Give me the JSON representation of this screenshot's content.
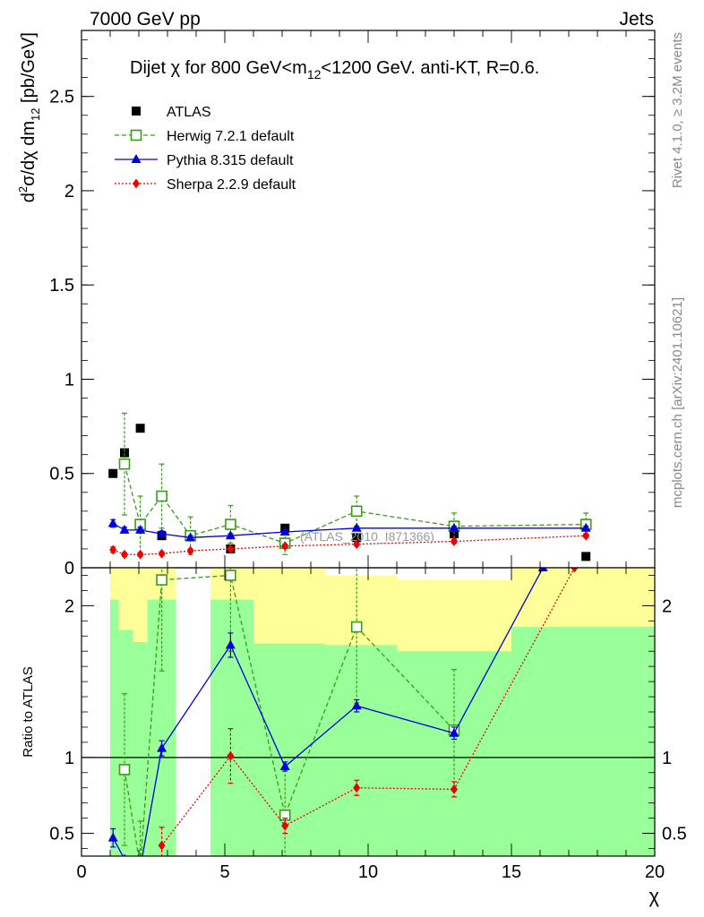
{
  "header": {
    "left": "7000 GeV pp",
    "right": "Jets"
  },
  "side_labels": {
    "rivet": "Rivet 4.1.0, ≥ 3.2M events",
    "mcplots": "mcplots.cern.ch [arXiv:2401.10621]"
  },
  "colors": {
    "atlas": "#000000",
    "herwig": "#3a9a1a",
    "pythia": "#0000dd",
    "sherpa": "#ee0000",
    "band_yellow": "#ffff99",
    "band_green": "#99ff99"
  },
  "chart_data": [
    {
      "type": "scatter",
      "panel": "main",
      "title_parts": {
        "pre": "Dijet χ for 800 GeV<m",
        "sub": "12",
        "post": "<1200 GeV.  anti-KT, R=0.6."
      },
      "ylabel_parts": {
        "pre": "d",
        "sup": "2",
        "mid": "σ/dχ dm",
        "sub": "12",
        "post": " [pb/GeV]"
      },
      "xlim": [
        0,
        20
      ],
      "ylim": [
        0,
        2.85
      ],
      "y_ticks": [
        0,
        0.5,
        1,
        1.5,
        2,
        2.5
      ],
      "y_tick_labels": [
        "0",
        "0.5",
        "1",
        "1.5",
        "2",
        "2.5"
      ],
      "watermark": "(ATLAS_2010_I871366)",
      "legend_position": "top-left",
      "series": [
        {
          "name": "ATLAS",
          "key": "atlas",
          "marker": "square-filled",
          "x": [
            1.1,
            1.5,
            2.05,
            2.8,
            5.2,
            7.1,
            9.6,
            13.0,
            17.6
          ],
          "y": [
            0.5,
            0.61,
            0.74,
            0.17,
            0.1,
            0.21,
            0.16,
            0.18,
            0.06
          ]
        },
        {
          "name": "Herwig 7.2.1 default",
          "key": "herwig",
          "marker": "square-open",
          "line": "dashed",
          "x": [
            1.5,
            2.05,
            2.8,
            3.8,
            5.2,
            7.1,
            9.6,
            13.0,
            17.6
          ],
          "y": [
            0.55,
            0.23,
            0.38,
            0.17,
            0.23,
            0.13,
            0.3,
            0.22,
            0.23
          ],
          "err": [
            0.27,
            0.15,
            0.17,
            0.1,
            0.1,
            0.06,
            0.08,
            0.07,
            0.06
          ]
        },
        {
          "name": "Pythia 8.315 default",
          "key": "pythia",
          "marker": "triangle",
          "line": "solid",
          "x": [
            1.1,
            1.5,
            2.05,
            2.8,
            3.8,
            5.2,
            7.1,
            9.6,
            13.0,
            17.6
          ],
          "y": [
            0.235,
            0.2,
            0.2,
            0.18,
            0.16,
            0.17,
            0.19,
            0.21,
            0.21,
            0.21
          ],
          "err": [
            0.02,
            0.015,
            0.015,
            0.015,
            0.01,
            0.01,
            0.01,
            0.01,
            0.01,
            0.01
          ]
        },
        {
          "name": "Sherpa 2.2.9 default",
          "key": "sherpa",
          "marker": "diamond",
          "line": "dotted",
          "x": [
            1.1,
            1.5,
            2.05,
            2.8,
            3.8,
            5.2,
            7.1,
            9.6,
            13.0,
            17.6
          ],
          "y": [
            0.095,
            0.07,
            0.07,
            0.075,
            0.09,
            0.1,
            0.115,
            0.125,
            0.14,
            0.17
          ],
          "err": [
            0.015,
            0.01,
            0.01,
            0.01,
            0.01,
            0.01,
            0.01,
            0.01,
            0.01,
            0.01
          ]
        }
      ]
    },
    {
      "type": "scatter",
      "panel": "ratio",
      "ylabel": "Ratio to ATLAS",
      "xlabel": "χ",
      "xlim": [
        0,
        20
      ],
      "ylim": [
        0.35,
        2.25
      ],
      "x_ticks": [
        0,
        5,
        10,
        15,
        20
      ],
      "x_tick_labels": [
        "0",
        "5",
        "10",
        "15",
        "20"
      ],
      "y_ticks": [
        0.5,
        1,
        2
      ],
      "y_tick_labels": [
        "0.5",
        "1",
        "2"
      ],
      "reference_line": 1,
      "bands": [
        {
          "x0": 1.0,
          "x1": 1.3,
          "green": [
            0.35,
            2.04
          ],
          "yellow": [
            0.35,
            2.25
          ]
        },
        {
          "x0": 1.3,
          "x1": 1.8,
          "green": [
            0.35,
            1.84
          ],
          "yellow": [
            0.35,
            2.25
          ]
        },
        {
          "x0": 1.8,
          "x1": 2.3,
          "green": [
            0.35,
            1.76
          ],
          "yellow": [
            0.35,
            2.25
          ]
        },
        {
          "x0": 2.3,
          "x1": 3.3,
          "green": [
            0.35,
            2.04
          ],
          "yellow": [
            0.35,
            2.25
          ]
        },
        {
          "x0": 4.5,
          "x1": 6.0,
          "green": [
            0.35,
            2.04
          ],
          "yellow": [
            0.35,
            2.25
          ]
        },
        {
          "x0": 6.0,
          "x1": 8.5,
          "green": [
            0.35,
            1.75
          ],
          "yellow": [
            0.35,
            2.25
          ]
        },
        {
          "x0": 8.5,
          "x1": 11.0,
          "green": [
            0.35,
            1.74
          ],
          "yellow": [
            0.35,
            2.2
          ]
        },
        {
          "x0": 11.0,
          "x1": 15.0,
          "green": [
            0.35,
            1.7
          ],
          "yellow": [
            0.35,
            2.17
          ]
        },
        {
          "x0": 15.0,
          "x1": 20.0,
          "green": [
            0.35,
            1.86
          ],
          "yellow": [
            0.35,
            2.25
          ]
        }
      ],
      "series": [
        {
          "name": "Herwig 7.2.1 default",
          "key": "herwig",
          "marker": "square-open",
          "line": "dashed",
          "x": [
            1.5,
            2.05,
            2.8,
            5.2,
            7.1,
            9.6,
            13.0
          ],
          "y": [
            0.92,
            0.28,
            2.17,
            2.2,
            0.62,
            1.86,
            1.18
          ],
          "err": [
            0.5,
            0.3,
            0.6,
            0.5,
            0.3,
            0.5,
            0.4
          ]
        },
        {
          "name": "Pythia 8.315 default",
          "key": "pythia",
          "marker": "triangle",
          "line": "solid",
          "x": [
            1.1,
            1.5,
            2.05,
            2.8,
            5.2,
            7.1,
            9.6,
            13.0,
            16.1
          ],
          "y": [
            0.47,
            0.33,
            0.27,
            1.06,
            1.74,
            0.94,
            1.34,
            1.16,
            2.25
          ],
          "err": [
            0.06,
            0.0,
            0.0,
            0.05,
            0.08,
            0.03,
            0.04,
            0.04,
            0.0
          ]
        },
        {
          "name": "Sherpa 2.2.9 default",
          "key": "sherpa",
          "marker": "diamond",
          "line": "dotted",
          "x": [
            2.8,
            5.2,
            7.1,
            9.6,
            13.0,
            17.2
          ],
          "y": [
            0.42,
            1.01,
            0.55,
            0.8,
            0.79,
            2.25
          ],
          "err": [
            0.12,
            0.18,
            0.05,
            0.05,
            0.05,
            0.0
          ]
        }
      ]
    }
  ]
}
